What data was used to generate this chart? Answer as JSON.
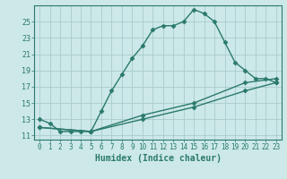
{
  "title": "",
  "xlabel": "Humidex (Indice chaleur)",
  "bg_color": "#cce8e8",
  "grid_color": "#aacccc",
  "line_color": "#2a7a6a",
  "xlim": [
    -0.5,
    23.5
  ],
  "ylim": [
    10.5,
    27.0
  ],
  "yticks": [
    11,
    13,
    15,
    17,
    19,
    21,
    23,
    25
  ],
  "xticks": [
    0,
    1,
    2,
    3,
    4,
    5,
    6,
    7,
    8,
    9,
    10,
    11,
    12,
    13,
    14,
    15,
    16,
    17,
    18,
    19,
    20,
    21,
    22,
    23
  ],
  "line1_x": [
    0,
    1,
    2,
    3,
    4,
    5,
    6,
    7,
    8,
    9,
    10,
    11,
    12,
    13,
    14,
    15,
    16,
    17,
    18,
    19,
    20,
    21,
    22,
    23
  ],
  "line1_y": [
    13.0,
    12.5,
    11.5,
    11.5,
    11.5,
    11.5,
    14.0,
    16.5,
    18.5,
    20.5,
    22.0,
    24.0,
    24.5,
    24.5,
    25.0,
    26.5,
    26.0,
    25.0,
    22.5,
    20.0,
    19.0,
    18.0,
    18.0,
    17.5
  ],
  "line2_x": [
    0,
    5,
    10,
    15,
    20,
    23
  ],
  "line2_y": [
    12.0,
    11.5,
    13.5,
    15.0,
    17.5,
    18.0
  ],
  "line3_x": [
    0,
    5,
    10,
    15,
    20,
    23
  ],
  "line3_y": [
    12.0,
    11.5,
    13.0,
    14.5,
    16.5,
    17.5
  ],
  "marker": "D",
  "markersize": 2.5,
  "linewidth": 1.0
}
